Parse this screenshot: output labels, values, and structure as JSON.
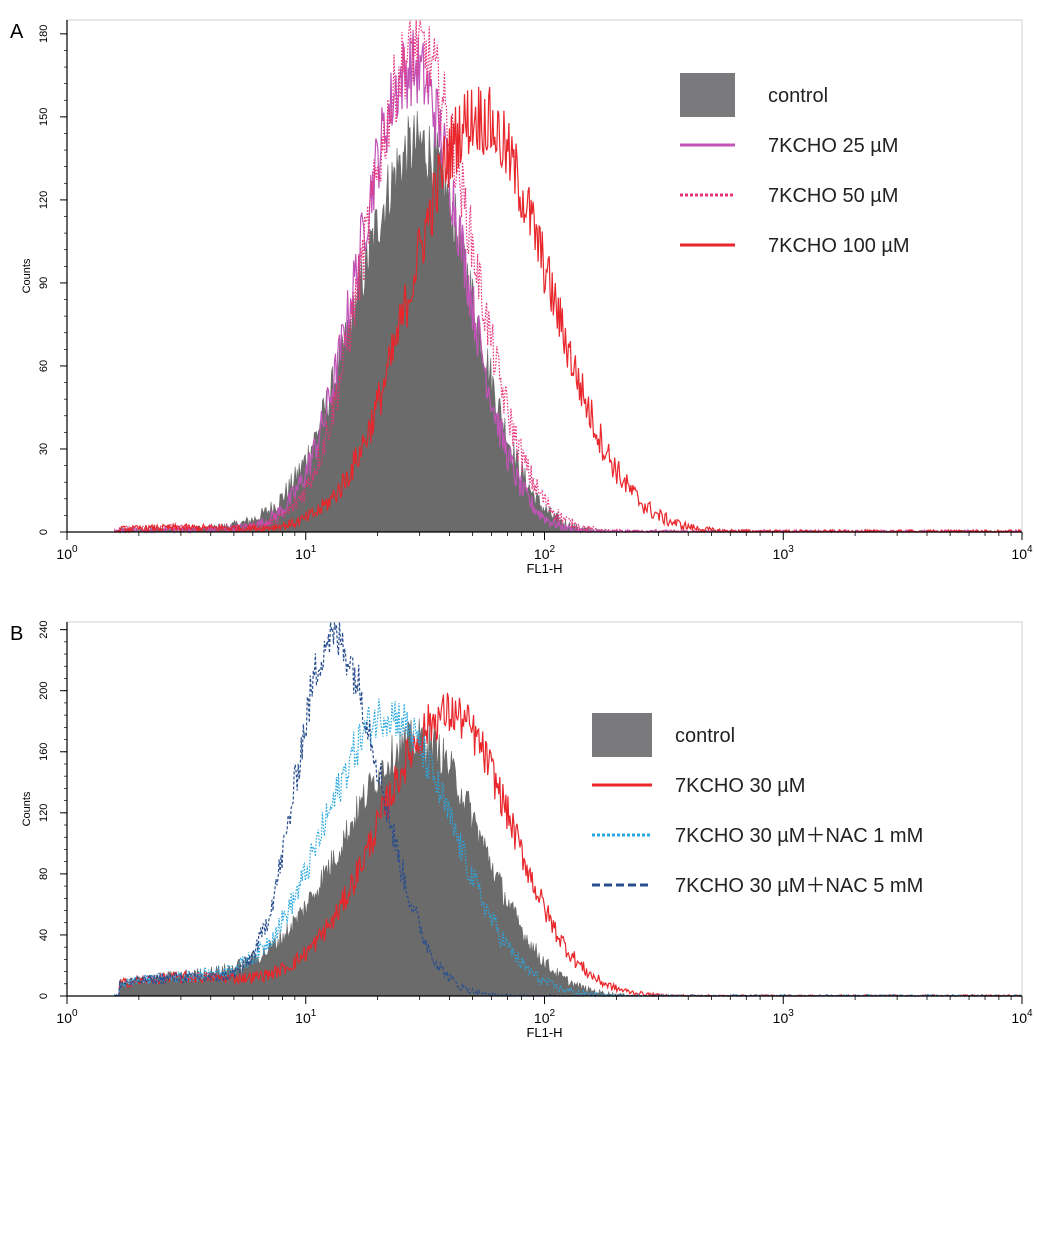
{
  "chart_data": [
    {
      "type": "area",
      "panel_label": "A",
      "xlabel": "FL1-H",
      "ylabel": "Counts",
      "x_scale": "log",
      "xlim": [
        1,
        10000
      ],
      "ylim": [
        0,
        185
      ],
      "x_ticks": [
        1,
        10,
        100,
        1000,
        10000
      ],
      "x_tick_labels": [
        {
          "base": "10",
          "exp": "0"
        },
        {
          "base": "10",
          "exp": "1"
        },
        {
          "base": "10",
          "exp": "2"
        },
        {
          "base": "10",
          "exp": "3"
        },
        {
          "base": "10",
          "exp": "4"
        }
      ],
      "y_ticks": [
        0,
        30,
        60,
        90,
        120,
        150,
        180
      ],
      "grid": false,
      "legend_position": "top-right",
      "series": [
        {
          "name": "control",
          "style": "fill",
          "color": "#6b6b6b",
          "peak_x": 30,
          "peak_y": 140,
          "sigma_left": 0.26,
          "sigma_right": 0.22,
          "baseline": 1.0
        },
        {
          "name": "7KCHO 25 µM",
          "style": "solid",
          "color": "#c154b6",
          "peak_x": 28,
          "peak_y": 168,
          "sigma_left": 0.22,
          "sigma_right": 0.21,
          "baseline": 1.0
        },
        {
          "name": "7KCHO 50 µM",
          "style": "dotted",
          "color": "#e8337a",
          "peak_x": 29,
          "peak_y": 175,
          "sigma_left": 0.21,
          "sigma_right": 0.23,
          "baseline": 1.5
        },
        {
          "name": "7KCHO 100 µM",
          "style": "solid-red",
          "color": "#e8262b",
          "peak_x": 52,
          "peak_y": 150,
          "sigma_left": 0.27,
          "sigma_right": 0.3,
          "baseline": 1.5
        }
      ]
    },
    {
      "type": "area",
      "panel_label": "B",
      "xlabel": "FL1-H",
      "ylabel": "Counts",
      "x_scale": "log",
      "xlim": [
        1,
        10000
      ],
      "ylim": [
        0,
        245
      ],
      "x_ticks": [
        1,
        10,
        100,
        1000,
        10000
      ],
      "x_tick_labels": [
        {
          "base": "10",
          "exp": "0"
        },
        {
          "base": "10",
          "exp": "1"
        },
        {
          "base": "10",
          "exp": "2"
        },
        {
          "base": "10",
          "exp": "3"
        },
        {
          "base": "10",
          "exp": "4"
        }
      ],
      "y_ticks": [
        0,
        40,
        80,
        120,
        160,
        200,
        240
      ],
      "grid": false,
      "legend_position": "top-right",
      "series": [
        {
          "name": "control",
          "style": "fill",
          "color": "#6b6b6b",
          "peak_x": 30,
          "peak_y": 168,
          "sigma_left": 0.32,
          "sigma_right": 0.26,
          "baseline": 12
        },
        {
          "name": "7KCHO 30 µM",
          "style": "solid-red",
          "color": "#e8262b",
          "peak_x": 40,
          "peak_y": 185,
          "sigma_left": 0.3,
          "sigma_right": 0.26,
          "baseline": 12
        },
        {
          "name": "7KCHO 30 µM＋NAC 1 mM",
          "style": "dotted",
          "color": "#29a8e0",
          "peak_x": 22,
          "peak_y": 185,
          "sigma_left": 0.26,
          "sigma_right": 0.27,
          "baseline": 12
        },
        {
          "name": "7KCHO 30 µM＋NAC 5 mM",
          "style": "dashed",
          "color": "#2a4f8e",
          "peak_x": 13,
          "peak_y": 235,
          "sigma_left": 0.15,
          "sigma_right": 0.2,
          "baseline": 12
        }
      ]
    }
  ]
}
